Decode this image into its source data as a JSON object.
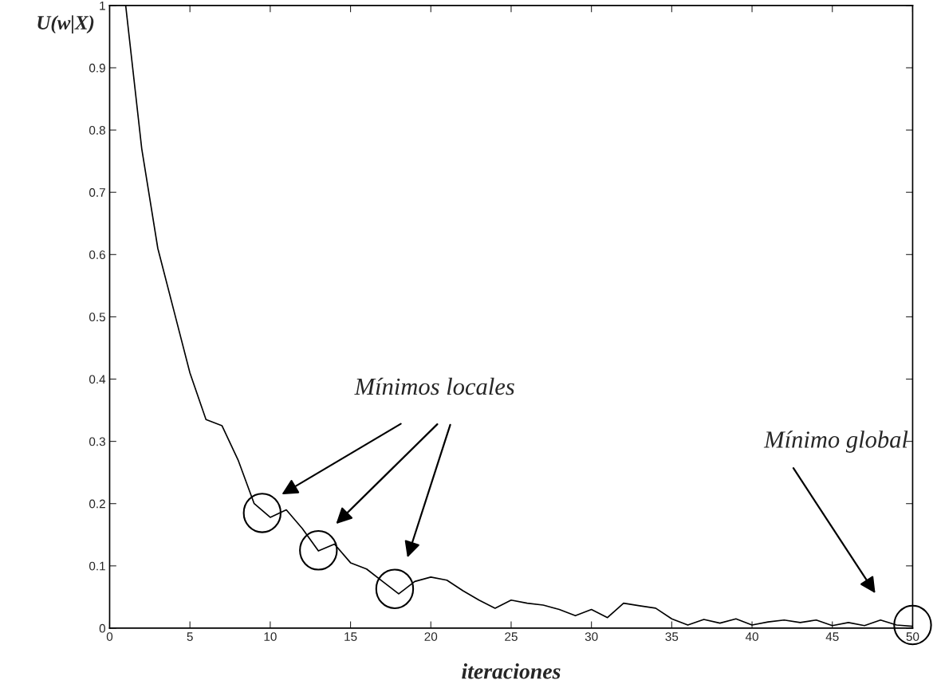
{
  "chart_data": {
    "type": "line",
    "xlabel": "iteraciones",
    "ylabel": "U(w|X)",
    "x": [
      1,
      2,
      3,
      4,
      5,
      6,
      7,
      8,
      9,
      10,
      11,
      12,
      13,
      14,
      15,
      16,
      17,
      18,
      19,
      20,
      21,
      22,
      23,
      24,
      25,
      26,
      27,
      28,
      29,
      30,
      31,
      32,
      33,
      34,
      35,
      36,
      37,
      38,
      39,
      40,
      41,
      42,
      43,
      44,
      45,
      46,
      47,
      48,
      49,
      50
    ],
    "series": [
      {
        "color": "#000000",
        "values": [
          1.0,
          0.77,
          0.61,
          0.51,
          0.41,
          0.335,
          0.325,
          0.27,
          0.2,
          0.178,
          0.19,
          0.16,
          0.124,
          0.135,
          0.105,
          0.095,
          0.075,
          0.055,
          0.075,
          0.082,
          0.077,
          0.06,
          0.045,
          0.032,
          0.045,
          0.04,
          0.037,
          0.03,
          0.02,
          0.03,
          0.017,
          0.04,
          0.036,
          0.032,
          0.015,
          0.005,
          0.014,
          0.008,
          0.015,
          0.005,
          0.01,
          0.013,
          0.009,
          0.013,
          0.004,
          0.009,
          0.004,
          0.013,
          0.005,
          0.003
        ]
      }
    ],
    "xlim": [
      0,
      50
    ],
    "ylim": [
      0,
      1
    ],
    "xticks": [
      0,
      5,
      10,
      15,
      20,
      25,
      30,
      35,
      40,
      45,
      50
    ],
    "yticks": [
      0,
      0.1,
      0.2,
      0.3,
      0.4,
      0.5,
      0.6,
      0.7,
      0.8,
      0.9,
      1
    ],
    "annotations": [
      "Mínimos locales",
      "Mínimo global"
    ],
    "grid": false,
    "legend": false,
    "marker": "none",
    "line_style": "solid"
  }
}
